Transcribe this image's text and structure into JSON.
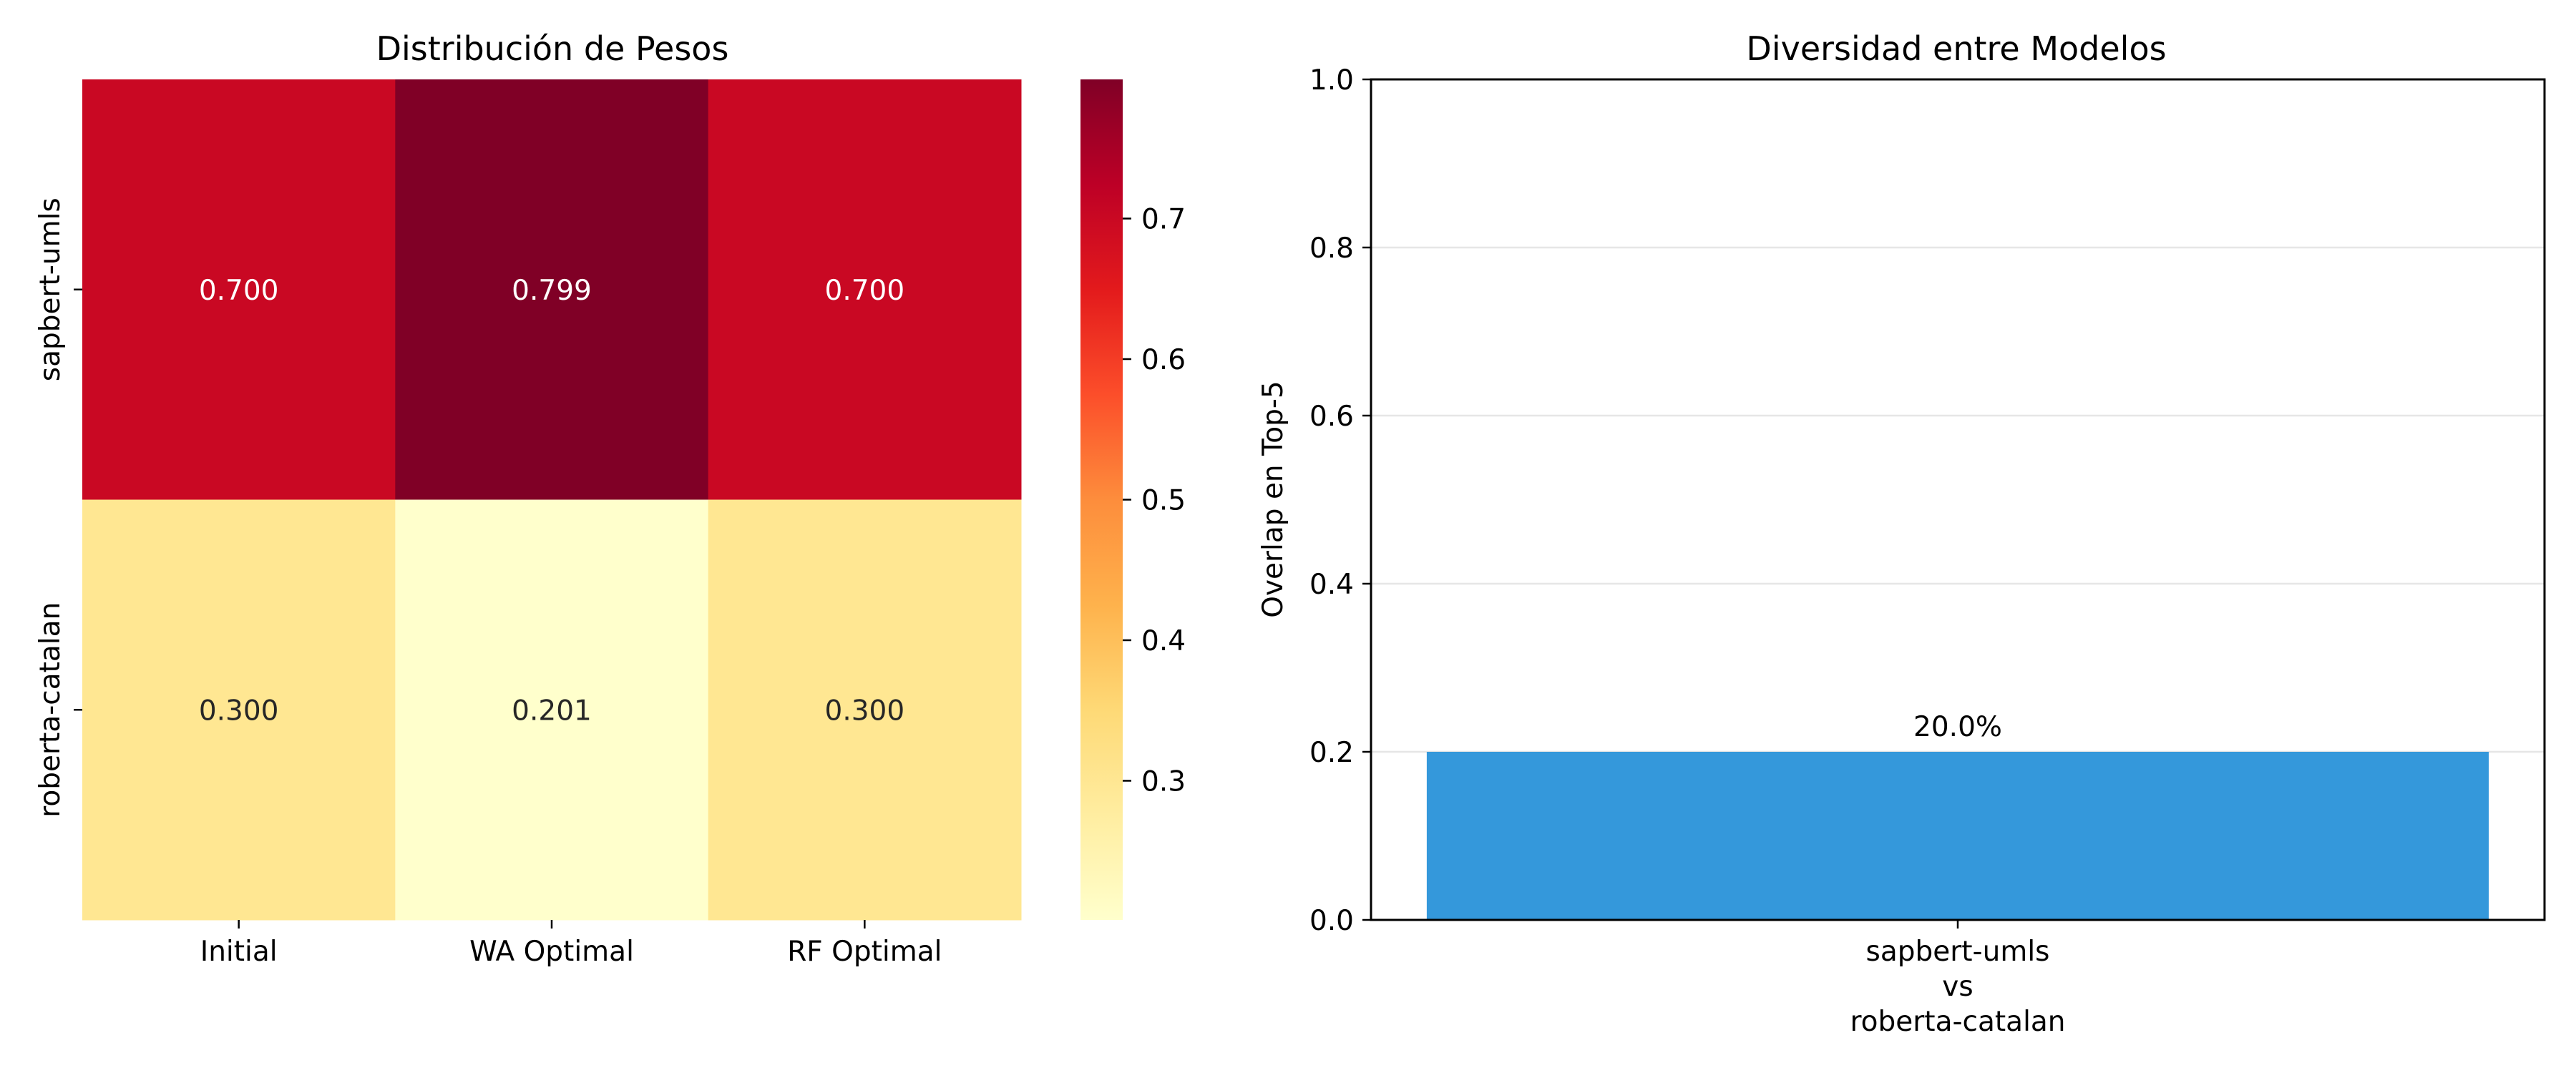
{
  "chart_data": [
    {
      "type": "heatmap",
      "title": "Distribución de Pesos",
      "x_categories": [
        "Initial",
        "WA Optimal",
        "RF Optimal"
      ],
      "y_categories": [
        "sapbert-umls",
        "roberta-catalan"
      ],
      "values": [
        [
          0.7,
          0.799,
          0.7
        ],
        [
          0.3,
          0.201,
          0.3
        ]
      ],
      "value_labels": [
        [
          "0.700",
          "0.799",
          "0.700"
        ],
        [
          "0.300",
          "0.201",
          "0.300"
        ]
      ],
      "colormap": "YlOrRd",
      "vmin": 0.201,
      "vmax": 0.799,
      "colorbar_ticks": [
        0.3,
        0.4,
        0.5,
        0.6,
        0.7
      ],
      "colorbar_tick_labels": [
        "0.3",
        "0.4",
        "0.5",
        "0.6",
        "0.7"
      ]
    },
    {
      "type": "bar",
      "title": "Diversidad entre Modelos",
      "categories": [
        "sapbert-umls\nvs\nroberta-catalan"
      ],
      "category_lines": [
        [
          "sapbert-umls",
          "vs",
          "roberta-catalan"
        ]
      ],
      "values": [
        0.2
      ],
      "value_labels": [
        "20.0%"
      ],
      "ylabel": "Overlap en Top-5",
      "ylim": [
        0,
        1.0
      ],
      "yticks": [
        0.0,
        0.2,
        0.4,
        0.6,
        0.8,
        1.0
      ],
      "ytick_labels": [
        "0.0",
        "0.2",
        "0.4",
        "0.6",
        "0.8",
        "1.0"
      ],
      "grid": "y",
      "bar_color": "#3498db"
    }
  ]
}
